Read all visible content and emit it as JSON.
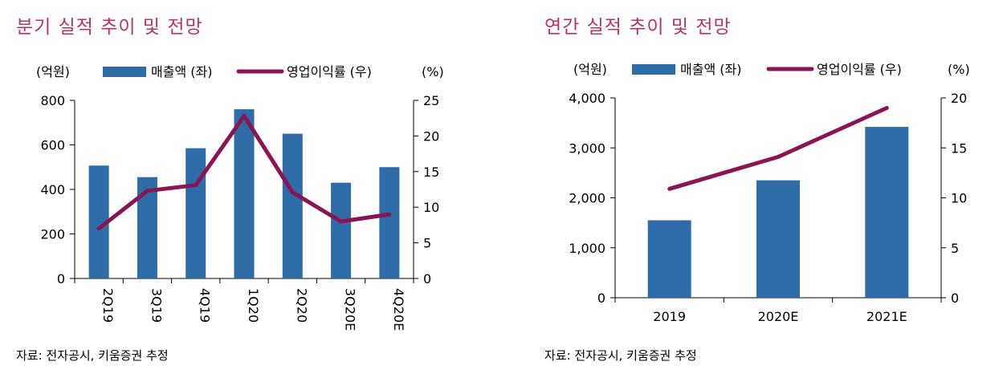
{
  "left": {
    "title": "분기 실적 추이 및 전망",
    "source": "자료: 전자공시, 키움증권 추정",
    "left_unit": "(억원)",
    "right_unit": "(%)"
  },
  "right": {
    "title": "연간 실적 추이 및 전망",
    "source": "자료: 전자공시, 키움증권 추정",
    "left_unit": "(억원)",
    "right_unit": "(%)"
  },
  "colors": {
    "bar": "#2e6ca8",
    "line": "#8b1455",
    "title": "#b8336a"
  },
  "chart_data": [
    {
      "type": "bar+line",
      "title": "분기 실적 추이 및 전망",
      "categories": [
        "2Q19",
        "3Q19",
        "4Q19",
        "1Q20",
        "2Q20",
        "3Q20E",
        "4Q20E"
      ],
      "series": [
        {
          "name": "매출액 (좌)",
          "axis": "left",
          "type": "bar",
          "values": [
            507,
            455,
            585,
            760,
            650,
            430,
            500
          ]
        },
        {
          "name": "영업이익률 (우)",
          "axis": "right",
          "type": "line",
          "values": [
            7.0,
            12.3,
            13.1,
            22.8,
            12.1,
            8.0,
            9.0
          ]
        }
      ],
      "y_left": {
        "min": 0,
        "max": 800,
        "ticks": [
          "0",
          "200",
          "400",
          "600",
          "800"
        ]
      },
      "y_right": {
        "min": 0,
        "max": 25,
        "ticks": [
          "0",
          "5",
          "10",
          "15",
          "20",
          "25"
        ]
      },
      "x_labels_rotated": true,
      "legend": "top"
    },
    {
      "type": "bar+line",
      "title": "연간 실적 추이 및 전망",
      "categories": [
        "2019",
        "2020E",
        "2021E"
      ],
      "series": [
        {
          "name": "매출액 (좌)",
          "axis": "left",
          "type": "bar",
          "values": [
            1550,
            2350,
            3420
          ]
        },
        {
          "name": "영업이익률 (우)",
          "axis": "right",
          "type": "line",
          "values": [
            10.9,
            14.1,
            19.0
          ]
        }
      ],
      "y_left": {
        "min": 0,
        "max": 4000,
        "ticks": [
          "0",
          "1,000",
          "2,000",
          "3,000",
          "4,000"
        ]
      },
      "y_right": {
        "min": 0,
        "max": 20,
        "ticks": [
          "0",
          "5",
          "10",
          "15",
          "20"
        ]
      },
      "x_labels_rotated": false,
      "legend": "top"
    }
  ]
}
